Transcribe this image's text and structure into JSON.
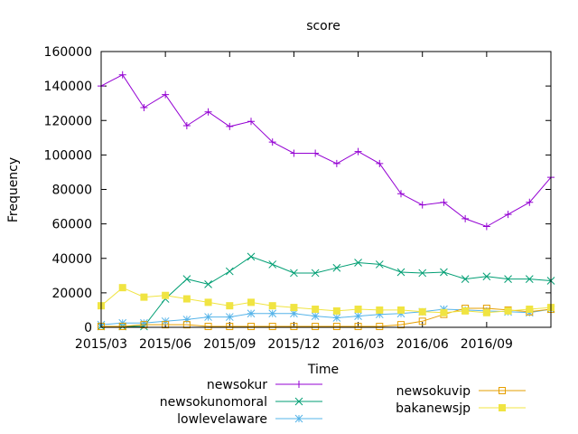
{
  "chart_data": {
    "type": "line",
    "title": "score",
    "xlabel": "Time",
    "ylabel": "Frequency",
    "ylim": [
      0,
      160000
    ],
    "yticks": [
      0,
      20000,
      40000,
      60000,
      80000,
      100000,
      120000,
      140000,
      160000
    ],
    "ytick_labels": [
      "0",
      "20000",
      "40000",
      "60000",
      "80000",
      "100000",
      "120000",
      "140000",
      "160000"
    ],
    "xlim": [
      "2015-03",
      "2016-12"
    ],
    "xticks": [
      "2015-03",
      "2015-06",
      "2015-09",
      "2015-12",
      "2016-03",
      "2016-06",
      "2016-09"
    ],
    "xtick_labels": [
      "2015/03",
      "2015/06",
      "2015/09",
      "2015/12",
      "2016/03",
      "2016/06",
      "2016/09"
    ],
    "x": [
      "2015-03",
      "2015-04",
      "2015-05",
      "2015-06",
      "2015-07",
      "2015-08",
      "2015-09",
      "2015-10",
      "2015-11",
      "2015-12",
      "2016-01",
      "2016-02",
      "2016-03",
      "2016-04",
      "2016-05",
      "2016-06",
      "2016-07",
      "2016-08",
      "2016-09",
      "2016-10",
      "2016-11",
      "2016-12"
    ],
    "grid": false,
    "legend_position": "bottom",
    "series": [
      {
        "name": "newsokur",
        "color": "#9400d3",
        "marker": "plus",
        "values": [
          140000,
          146500,
          127500,
          135000,
          117000,
          125000,
          116500,
          119500,
          107500,
          101000,
          101000,
          95000,
          102000,
          95000,
          77500,
          71000,
          72500,
          63000,
          58500,
          65500,
          72500,
          87000
        ]
      },
      {
        "name": "newsokunomoral",
        "color": "#009e73",
        "marker": "cross",
        "values": [
          500,
          500,
          500,
          16500,
          28000,
          25000,
          32500,
          41000,
          36500,
          31500,
          31500,
          34500,
          37500,
          36500,
          32000,
          31500,
          32000,
          28000,
          29500,
          28000,
          28000,
          27000
        ]
      },
      {
        "name": "lowlevelaware",
        "color": "#56b4e9",
        "marker": "star",
        "values": [
          1500,
          2500,
          2500,
          3500,
          4500,
          6000,
          6000,
          8000,
          8000,
          8000,
          6500,
          5500,
          6500,
          7500,
          8000,
          9000,
          10500,
          10000,
          9500,
          9000,
          8500,
          10500
        ]
      },
      {
        "name": "newsokuvip",
        "color": "#e69f00",
        "marker": "open-square",
        "values": [
          500,
          500,
          1500,
          1500,
          1500,
          500,
          500,
          500,
          500,
          500,
          500,
          500,
          500,
          500,
          1500,
          3500,
          7500,
          11000,
          11000,
          10000,
          9000,
          10500
        ]
      },
      {
        "name": "bakanewsjp",
        "color": "#f0e442",
        "marker": "filled-square",
        "values": [
          12500,
          23000,
          17500,
          18500,
          16500,
          14500,
          12500,
          14500,
          12500,
          11500,
          10500,
          9500,
          10500,
          10000,
          10000,
          9000,
          8500,
          9500,
          8500,
          9500,
          10500,
          11500
        ]
      }
    ]
  }
}
